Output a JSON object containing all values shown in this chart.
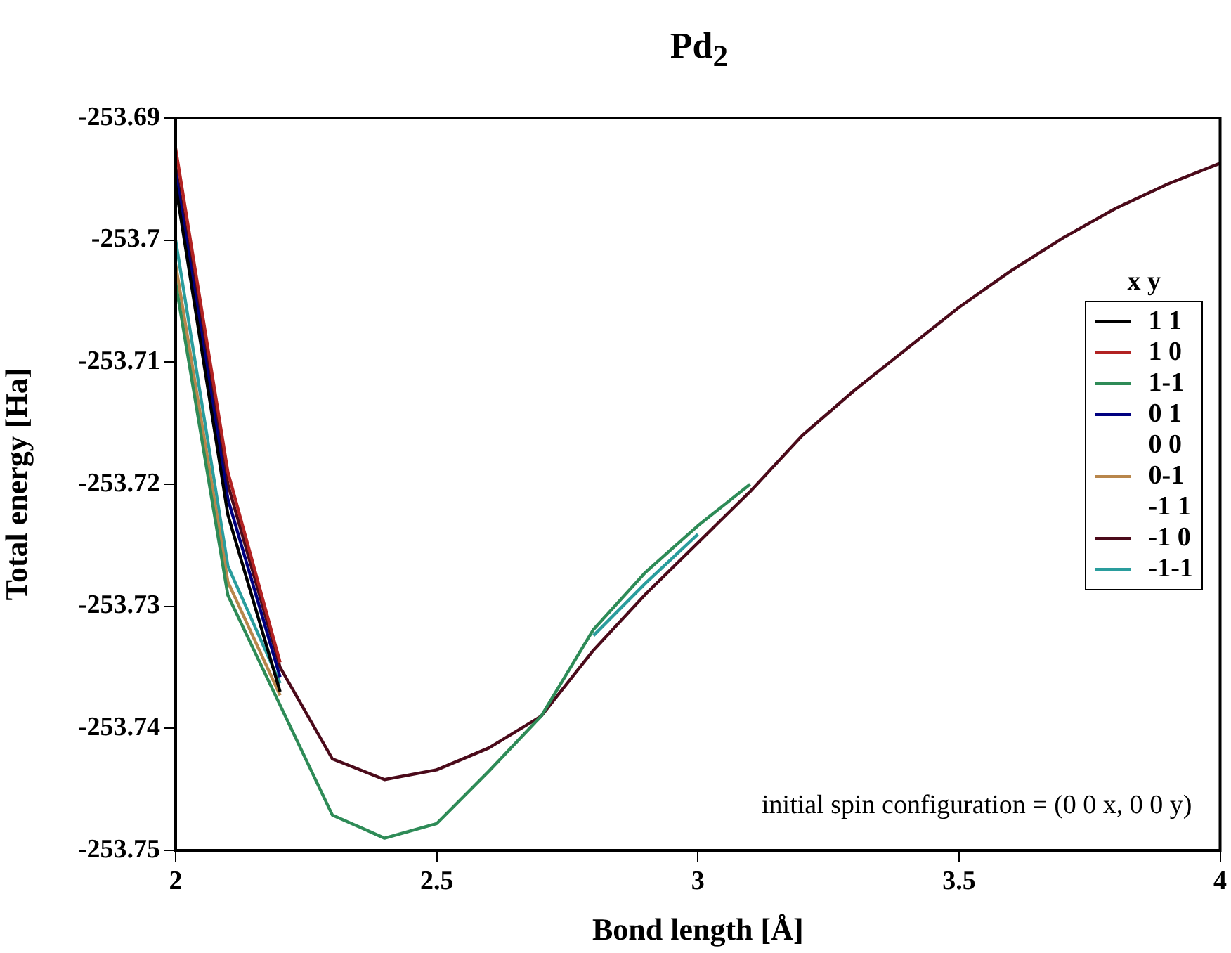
{
  "chart_data": {
    "type": "line",
    "title": "Pd$_{2}$",
    "xlabel": "Bond length [Å]",
    "ylabel": "Total energy [Ha]",
    "legend_title": "x y",
    "legend": "right",
    "grid": false,
    "marker": "none",
    "line_style": "solid",
    "x": [
      2,
      2.1,
      2.2,
      2.3,
      2.4,
      2.5,
      2.6,
      2.7,
      2.8,
      2.9,
      3,
      3.1,
      3.2,
      3.3,
      3.4,
      3.5,
      3.6,
      3.7,
      3.8,
      3.9,
      4
    ],
    "xlim": [
      2,
      4
    ],
    "xticks": [
      2,
      2.5,
      3,
      3.5,
      4
    ],
    "ylim": [
      -253.75,
      -253.69
    ],
    "yticks": [
      -253.75,
      -253.74,
      -253.73,
      -253.72,
      -253.71,
      -253.7,
      -253.69
    ],
    "annotations": [
      "initial spin configuration = (0 0 x, 0 0 y)"
    ],
    "series": [
      {
        "name": "1 1",
        "color": "#000000",
        "values": [
          -253.6955,
          -253.7225,
          -253.737,
          null,
          null,
          null,
          null,
          null,
          null,
          null,
          null,
          null,
          null,
          null,
          null,
          null,
          null,
          null,
          null,
          null,
          null
        ]
      },
      {
        "name": "1 0",
        "color": "#b22222",
        "values": [
          -253.6925,
          -253.719,
          -253.7346,
          null,
          null,
          null,
          null,
          null,
          null,
          null,
          null,
          null,
          null,
          null,
          null,
          null,
          null,
          null,
          null,
          null,
          null
        ]
      },
      {
        "name": "1-1",
        "color": "#2e8b57",
        "values": [
          -253.7035,
          -253.7291,
          -253.7381,
          -253.7471,
          -253.749,
          -253.7478,
          -253.7435,
          -253.739,
          -253.7319,
          -253.7272,
          -253.7234,
          -253.72,
          null,
          null,
          null,
          null,
          null,
          null,
          null,
          null,
          null
        ]
      },
      {
        "name": "0 1",
        "color": "#000080",
        "values": [
          -253.6945,
          -253.7212,
          -253.7358,
          null,
          null,
          null,
          null,
          null,
          null,
          null,
          null,
          null,
          null,
          null,
          null,
          null,
          null,
          null,
          null,
          null,
          null
        ]
      },
      {
        "name": "0 0",
        "values": [
          null,
          null,
          null,
          null,
          null,
          null,
          null,
          null,
          null,
          null,
          null,
          null,
          null,
          null,
          null,
          null,
          null,
          null,
          null,
          null,
          null
        ]
      },
      {
        "name": "0-1",
        "color": "#b8864b",
        "values": [
          -253.702,
          -253.728,
          -253.7373,
          null,
          null,
          null,
          null,
          null,
          null,
          null,
          null,
          null,
          null,
          null,
          null,
          null,
          null,
          null,
          null,
          null,
          null
        ]
      },
      {
        "name": "-1 1",
        "values": [
          null,
          null,
          null,
          null,
          null,
          null,
          null,
          null,
          null,
          null,
          null,
          null,
          null,
          null,
          null,
          null,
          null,
          null,
          null,
          null,
          null
        ]
      },
      {
        "name": "-1 0",
        "color": "#4b0a1a",
        "values": [
          -253.694,
          -253.72,
          -253.735,
          -253.7425,
          -253.7442,
          -253.7434,
          -253.7416,
          -253.739,
          -253.7336,
          -253.729,
          -253.7248,
          -253.7206,
          -253.716,
          -253.7123,
          -253.7089,
          -253.7055,
          -253.7025,
          -253.6998,
          -253.6974,
          -253.6954,
          -253.6937
        ]
      },
      {
        "name": "-1-1",
        "color": "#2a9d9d",
        "values": [
          -253.7,
          -253.7267,
          -253.7363,
          null,
          null,
          null,
          null,
          null,
          -253.7324,
          -253.7281,
          -253.7241,
          null,
          null,
          null,
          null,
          null,
          null,
          null,
          null,
          null,
          null
        ]
      }
    ]
  }
}
